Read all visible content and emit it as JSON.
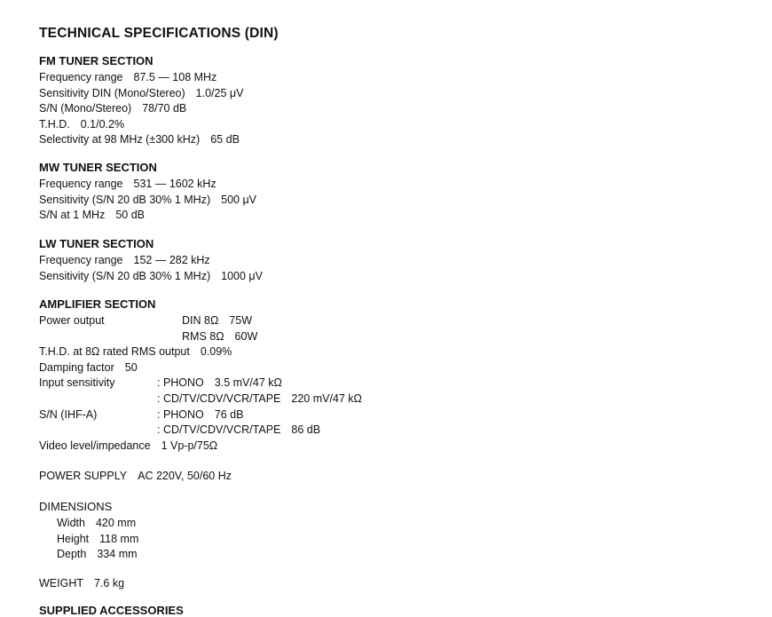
{
  "title": "TECHNICAL SPECIFICATIONS (DIN)",
  "sections": [
    {
      "heading": "FM TUNER SECTION",
      "rows": [
        {
          "label": "Frequency range",
          "value": "87.5 — 108 MHz"
        },
        {
          "label": "Sensitivity DIN (Mono/Stereo)",
          "value": "1.0/25 μV"
        },
        {
          "label": "S/N (Mono/Stereo)",
          "value": "78/70 dB"
        },
        {
          "label": "T.H.D.",
          "value": "0.1/0.2%"
        },
        {
          "label": "Selectivity at 98 MHz (±300 kHz)",
          "value": "65 dB"
        }
      ]
    },
    {
      "heading": "MW TUNER SECTION",
      "rows": [
        {
          "label": "Frequency range",
          "value": "531 — 1602 kHz"
        },
        {
          "label": "Sensitivity (S/N 20 dB 30% 1 MHz)",
          "value": "500 μV"
        },
        {
          "label": "S/N at 1 MHz",
          "value": "50 dB"
        }
      ]
    },
    {
      "heading": "LW TUNER SECTION",
      "rows": [
        {
          "label": "Frequency range",
          "value": "152 — 282 kHz"
        },
        {
          "label": "Sensitivity (S/N 20 dB 30% 1 MHz)",
          "value": "1000 μV"
        }
      ]
    },
    {
      "heading": "AMPLIFIER SECTION",
      "rows": [
        {
          "label": "Power output",
          "sub": "DIN 8Ω",
          "value": "75W"
        },
        {
          "sub": "RMS 8Ω",
          "value": "60W"
        },
        {
          "label": "T.H.D. at 8Ω rated RMS output",
          "value": "0.09%"
        },
        {
          "label": "Damping factor",
          "value": "50"
        },
        {
          "label": "Input sensitivity",
          "sub": ": PHONO",
          "value": "3.5 mV/47 kΩ"
        },
        {
          "sub": ": CD/TV/CDV/VCR/TAPE",
          "value": "220 mV/47 kΩ"
        },
        {
          "label": "S/N (IHF-A)",
          "sub": ": PHONO",
          "value": "76 dB"
        },
        {
          "sub": ": CD/TV/CDV/VCR/TAPE",
          "value": "86 dB"
        },
        {
          "label": "Video level/impedance",
          "value": "1 Vp-p/75Ω"
        }
      ]
    },
    {
      "rows": [
        {
          "label": "POWER SUPPLY",
          "value": "AC 220V, 50/60 Hz"
        }
      ]
    },
    {
      "heading": "DIMENSIONS",
      "rows": [
        {
          "label": "Width",
          "value": "420 mm"
        },
        {
          "label": "Height",
          "value": "118 mm"
        },
        {
          "label": "Depth",
          "value": "334 mm"
        }
      ]
    },
    {
      "rows": [
        {
          "label": "WEIGHT",
          "value": "7.6 kg"
        }
      ]
    },
    {
      "heading": "SUPPLIED ACCESSORIES",
      "rows": []
    }
  ]
}
